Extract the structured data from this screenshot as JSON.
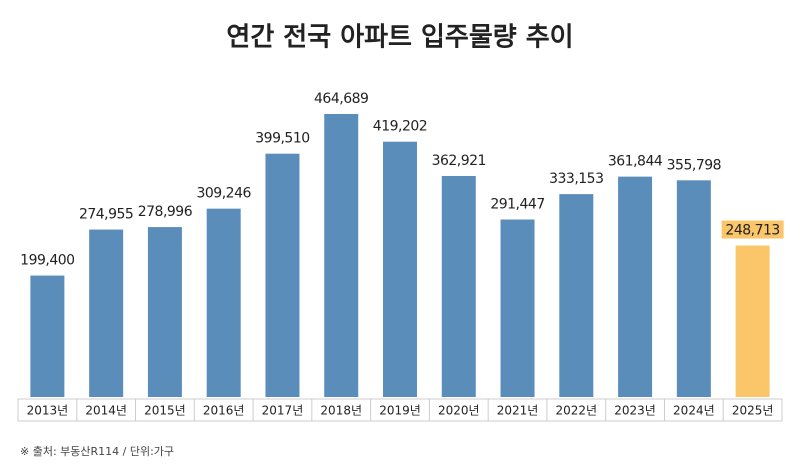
{
  "chart_data": {
    "type": "bar",
    "title": "연간 전국 아파트 입주물량 추이",
    "categories": [
      "2013년",
      "2014년",
      "2015년",
      "2016년",
      "2017년",
      "2018년",
      "2019년",
      "2020년",
      "2021년",
      "2022년",
      "2023년",
      "2024년",
      "2025년"
    ],
    "values": [
      199400,
      274955,
      278996,
      309246,
      399510,
      464689,
      419202,
      362921,
      291447,
      333153,
      361844,
      355798,
      248713
    ],
    "value_labels": [
      "199,400",
      "274,955",
      "278,996",
      "309,246",
      "399,510",
      "464,689",
      "419,202",
      "362,921",
      "291,447",
      "333,153",
      "361,844",
      "355,798",
      "248,713"
    ],
    "colors": [
      "#5b8dbb",
      "#5b8dbb",
      "#5b8dbb",
      "#5b8dbb",
      "#5b8dbb",
      "#5b8dbb",
      "#5b8dbb",
      "#5b8dbb",
      "#5b8dbb",
      "#5b8dbb",
      "#5b8dbb",
      "#5b8dbb",
      "#fbc56a"
    ],
    "source": "※ 출처: 부동산R114 / 단위:가구"
  }
}
